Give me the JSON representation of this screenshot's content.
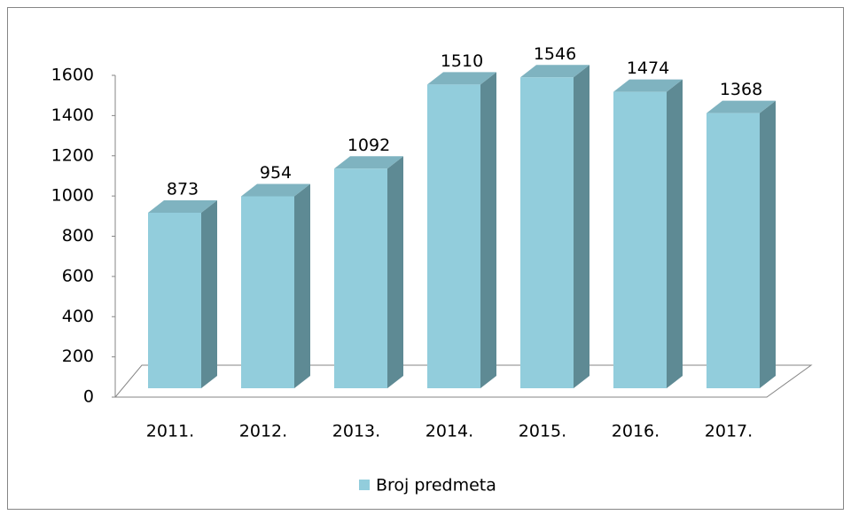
{
  "chart_data": {
    "type": "bar3d",
    "categories": [
      "2011.",
      "2012.",
      "2013.",
      "2014.",
      "2015.",
      "2016.",
      "2017."
    ],
    "series": [
      {
        "name": "Broj predmeta",
        "color": "#92cddc",
        "values": [
          873,
          954,
          1092,
          1510,
          1546,
          1474,
          1368
        ]
      }
    ],
    "ylim": [
      0,
      1600
    ],
    "yticks": [
      0,
      200,
      400,
      600,
      800,
      1000,
      1200,
      1400,
      1600
    ],
    "grid": false,
    "legend": "bottom"
  }
}
